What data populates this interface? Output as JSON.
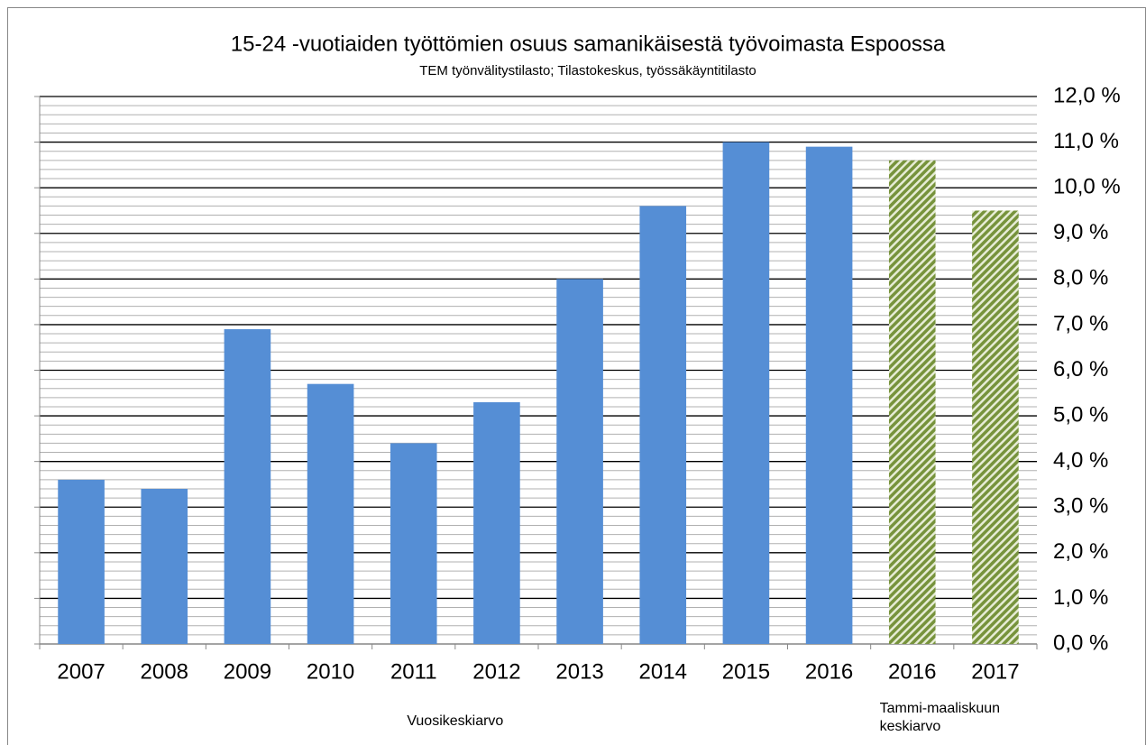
{
  "chart_data": {
    "type": "bar",
    "title": "15-24 -vuotiaiden työttömien osuus samanikäisestä työvoimasta Espoossa",
    "subtitle": "TEM työnvälitystilasto; Tilastokeskus, työssäkäyntitilasto",
    "categories": [
      "2007",
      "2008",
      "2009",
      "2010",
      "2011",
      "2012",
      "2013",
      "2014",
      "2015",
      "2016",
      "2016",
      "2017"
    ],
    "series": [
      {
        "name": "Vuosikeskiarvo",
        "color": "#558ed5",
        "values": [
          3.6,
          3.4,
          6.9,
          5.7,
          4.4,
          5.3,
          8.0,
          9.6,
          11.0,
          10.9,
          null,
          null
        ]
      },
      {
        "name": "Tammi-maaliskuun keskiarvo",
        "color": "#77933c",
        "pattern": "diagonal-hatch",
        "values": [
          null,
          null,
          null,
          null,
          null,
          null,
          null,
          null,
          null,
          null,
          10.6,
          9.5
        ]
      }
    ],
    "ylim": [
      0,
      12
    ],
    "yticks": [
      {
        "value": 0,
        "label": "0,0 %"
      },
      {
        "value": 1,
        "label": "1,0 %"
      },
      {
        "value": 2,
        "label": "2,0 %"
      },
      {
        "value": 3,
        "label": "3,0 %"
      },
      {
        "value": 4,
        "label": "4,0 %"
      },
      {
        "value": 5,
        "label": "5,0 %"
      },
      {
        "value": 6,
        "label": "6,0 %"
      },
      {
        "value": 7,
        "label": "7,0 %"
      },
      {
        "value": 8,
        "label": "8,0 %"
      },
      {
        "value": 9,
        "label": "9,0 %"
      },
      {
        "value": 10,
        "label": "10,0 %"
      },
      {
        "value": 11,
        "label": "11,0 %"
      },
      {
        "value": 12,
        "label": "12,0 %"
      }
    ],
    "yaxis_side": "right",
    "grid": true,
    "minor_grid": true
  }
}
